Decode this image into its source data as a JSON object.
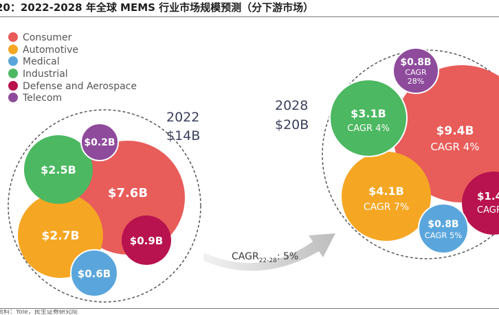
{
  "title": "20：2022-2028 年全球 MEMS 行业市场规模预测（分下游市场）",
  "source": "资料：Yole，民生证券研究院",
  "chart_data": {
    "type": "bubble",
    "legend": [
      {
        "name": "Consumer",
        "color": "#e85c5a"
      },
      {
        "name": "Automotive",
        "color": "#f5a623"
      },
      {
        "name": "Medical",
        "color": "#5aa6dc"
      },
      {
        "name": "Industrial",
        "color": "#4cb861"
      },
      {
        "name": "Defense and Aerospace",
        "color": "#b8134e"
      },
      {
        "name": "Telecom",
        "color": "#8e4b9c"
      }
    ],
    "years": [
      {
        "year_label": "2022",
        "total_label": "$14B",
        "bubbles": [
          {
            "segment": "Consumer",
            "value": 7.6,
            "label": "$7.6B"
          },
          {
            "segment": "Automotive",
            "value": 2.7,
            "label": "$2.7B"
          },
          {
            "segment": "Industrial",
            "value": 2.5,
            "label": "$2.5B"
          },
          {
            "segment": "Defense and Aerospace",
            "value": 0.9,
            "label": "$0.9B"
          },
          {
            "segment": "Medical",
            "value": 0.6,
            "label": "$0.6B"
          },
          {
            "segment": "Telecom",
            "value": 0.2,
            "label": "$0.2B"
          }
        ]
      },
      {
        "year_label": "2028",
        "total_label": "$20B",
        "bubbles": [
          {
            "segment": "Consumer",
            "value": 9.4,
            "label": "$9.4B",
            "cagr": "CAGR 4%"
          },
          {
            "segment": "Automotive",
            "value": 4.1,
            "label": "$4.1B",
            "cagr": "CAGR 7%"
          },
          {
            "segment": "Industrial",
            "value": 3.1,
            "label": "$3.1B",
            "cagr": "CAGR 4%"
          },
          {
            "segment": "Defense and Aerospace",
            "value": 1.4,
            "label": "$1.4",
            "cagr": "CAGR"
          },
          {
            "segment": "Medical",
            "value": 0.8,
            "label": "$0.8B",
            "cagr": "CAGR 5%"
          },
          {
            "segment": "Telecom",
            "value": 0.8,
            "label": "$0.8B",
            "cagr": "CAGR 28%"
          }
        ]
      }
    ],
    "arrow": {
      "cagr_main": "CAGR",
      "cagr_sub": "22-28",
      "cagr_value": ": 5%"
    }
  }
}
